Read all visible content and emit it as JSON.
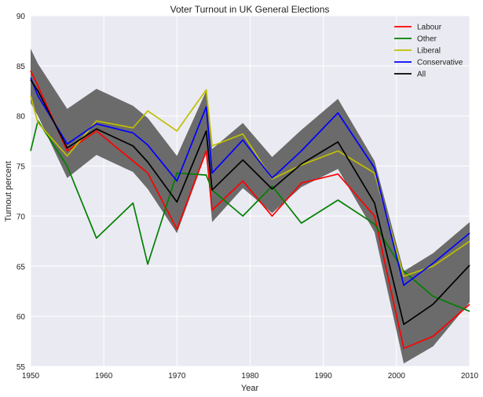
{
  "chart_data": {
    "type": "line",
    "title": "Voter Turnout in UK General Elections",
    "xlabel": "Year",
    "ylabel": "Turnout percent",
    "xlim": [
      1950,
      2010
    ],
    "ylim": [
      55,
      90
    ],
    "xticks": [
      1950,
      1960,
      1970,
      1980,
      1990,
      2000,
      2010
    ],
    "yticks": [
      55,
      60,
      65,
      70,
      75,
      80,
      85,
      90
    ],
    "grid": true,
    "legend_position": "top-right",
    "x": [
      1950,
      1951,
      1955,
      1959,
      1964,
      1966,
      1970,
      1974,
      1974.8,
      1979,
      1983,
      1987,
      1992,
      1997,
      2001,
      2005,
      2010
    ],
    "series": [
      {
        "name": "Labour",
        "color": "#ff0000",
        "values": [
          84.5,
          83.0,
          76.5,
          78.5,
          75.5,
          74.3,
          68.7,
          76.5,
          70.6,
          73.5,
          70.0,
          73.3,
          74.2,
          70.0,
          56.8,
          58.0,
          61.2
        ]
      },
      {
        "name": "Other",
        "color": "#008000",
        "values": [
          76.5,
          79.5,
          75.0,
          67.8,
          71.3,
          65.2,
          74.3,
          74.1,
          72.6,
          70.0,
          73.0,
          69.3,
          71.6,
          69.2,
          64.5,
          62.0,
          60.5
        ]
      },
      {
        "name": "Liberal",
        "color": "#bfbf00",
        "values": [
          82.0,
          79.3,
          76.0,
          79.5,
          78.8,
          80.5,
          78.5,
          82.6,
          77.0,
          78.2,
          73.7,
          75.1,
          76.5,
          74.3,
          64.0,
          65.0,
          67.5
        ]
      },
      {
        "name": "Conservative",
        "color": "#0000ff",
        "values": [
          83.8,
          82.0,
          77.2,
          79.2,
          78.3,
          77.1,
          73.5,
          80.9,
          74.3,
          77.6,
          73.8,
          76.5,
          80.3,
          74.8,
          63.1,
          65.3,
          68.3
        ]
      },
      {
        "name": "All",
        "color": "#000000",
        "values": [
          83.6,
          82.5,
          76.8,
          78.7,
          77.0,
          75.4,
          71.4,
          78.5,
          72.6,
          75.6,
          72.7,
          75.2,
          77.4,
          71.3,
          59.2,
          61.2,
          65.1
        ]
      }
    ],
    "band": {
      "color": "#6b6b6b",
      "upper": [
        86.7,
        85.2,
        80.7,
        82.7,
        81.0,
        79.8,
        76.0,
        82.5,
        76.7,
        79.3,
        75.9,
        78.6,
        81.7,
        75.5,
        64.5,
        66.3,
        69.4
      ],
      "lower": [
        81.3,
        80.0,
        73.8,
        76.1,
        74.4,
        72.7,
        68.3,
        76.3,
        69.4,
        72.8,
        70.3,
        72.9,
        74.7,
        68.4,
        55.3,
        57.0,
        61.4
      ]
    }
  }
}
